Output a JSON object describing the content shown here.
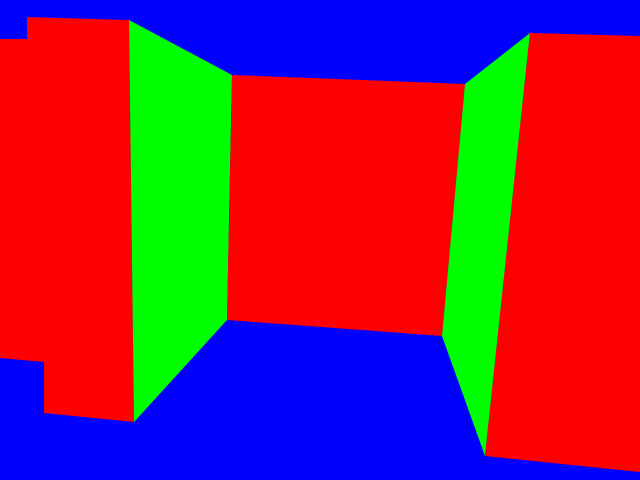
{
  "scene": {
    "type": "3d-maze-view",
    "colors": {
      "background": "#0000ff",
      "wall_facing": "#ff0000",
      "wall_side": "#00ff00"
    }
  }
}
